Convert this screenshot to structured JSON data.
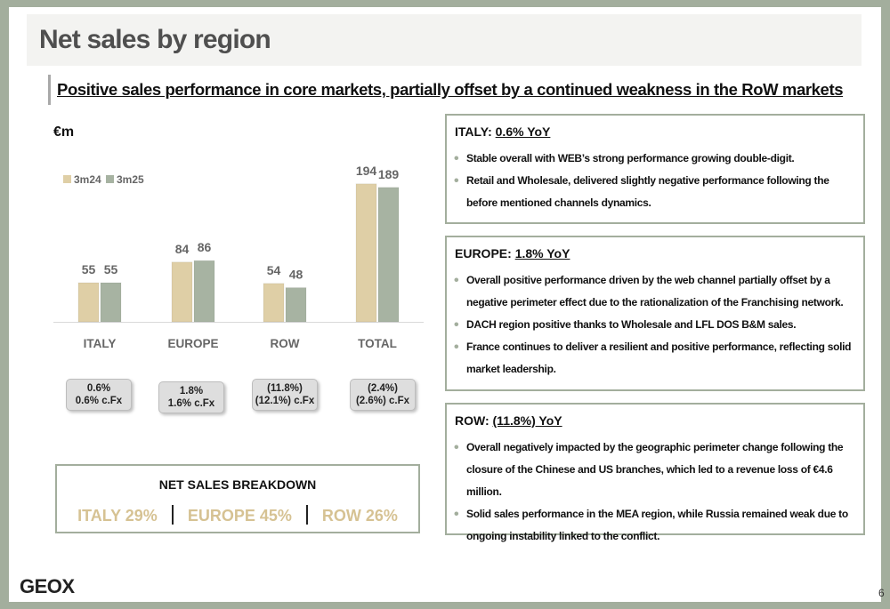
{
  "header": {
    "title": "Net sales by region",
    "subtitle": "Positive sales performance in core markets, partially offset by a continued weakness in the RoW markets"
  },
  "chart_data": {
    "type": "bar",
    "unit_label": "€m",
    "categories": [
      "ITALY",
      "EUROPE",
      "ROW",
      "TOTAL"
    ],
    "series": [
      {
        "name": "3m24",
        "values": [
          55,
          84,
          54,
          194
        ],
        "color": "#dfcfa6"
      },
      {
        "name": "3m25",
        "values": [
          55,
          86,
          48,
          189
        ],
        "color": "#a7b3a2"
      }
    ],
    "legend_position": "top-left",
    "grid": false,
    "value_labels": true
  },
  "yoy_boxes": [
    {
      "line1": "0.6%",
      "line2": "0.6% c.Fx"
    },
    {
      "line1": "1.8%",
      "line2": "1.6% c.Fx"
    },
    {
      "line1": "(11.8%)",
      "line2": "(12.1%) c.Fx"
    },
    {
      "line1": "(2.4%)",
      "line2": "(2.6%) c.Fx"
    }
  ],
  "breakdown": {
    "title": "NET SALES BREAKDOWN",
    "italy": "ITALY 29%",
    "europe": "EUROPE 45%",
    "row": "ROW 26%"
  },
  "cards": [
    {
      "region": "ITALY:",
      "yoy": "0.6% YoY",
      "bullets": [
        "Stable overall with WEB’s strong performance growing double-digit.",
        "Retail and Wholesale, delivered slightly negative performance following the before mentioned channels dynamics."
      ]
    },
    {
      "region": "EUROPE:",
      "yoy": "1.8% YoY",
      "bullets": [
        "Overall positive performance driven by the web channel partially offset by a negative perimeter effect due to the rationalization of the Franchising network.",
        "DACH region positive thanks to Wholesale and LFL DOS B&M sales.",
        "France continues to deliver a resilient and positive performance, reflecting solid market leadership."
      ]
    },
    {
      "region": "ROW:",
      "yoy": "(11.8%) YoY",
      "bullets": [
        "Overall negatively impacted by the geographic perimeter change following the closure of the Chinese and US branches, which led to a revenue loss of €4.6 million.",
        "Solid sales performance in the MEA region, while Russia remained weak due to ongoing instability linked to the conflict."
      ]
    }
  ],
  "footer": {
    "logo": "GEOX",
    "page_number": "6"
  }
}
